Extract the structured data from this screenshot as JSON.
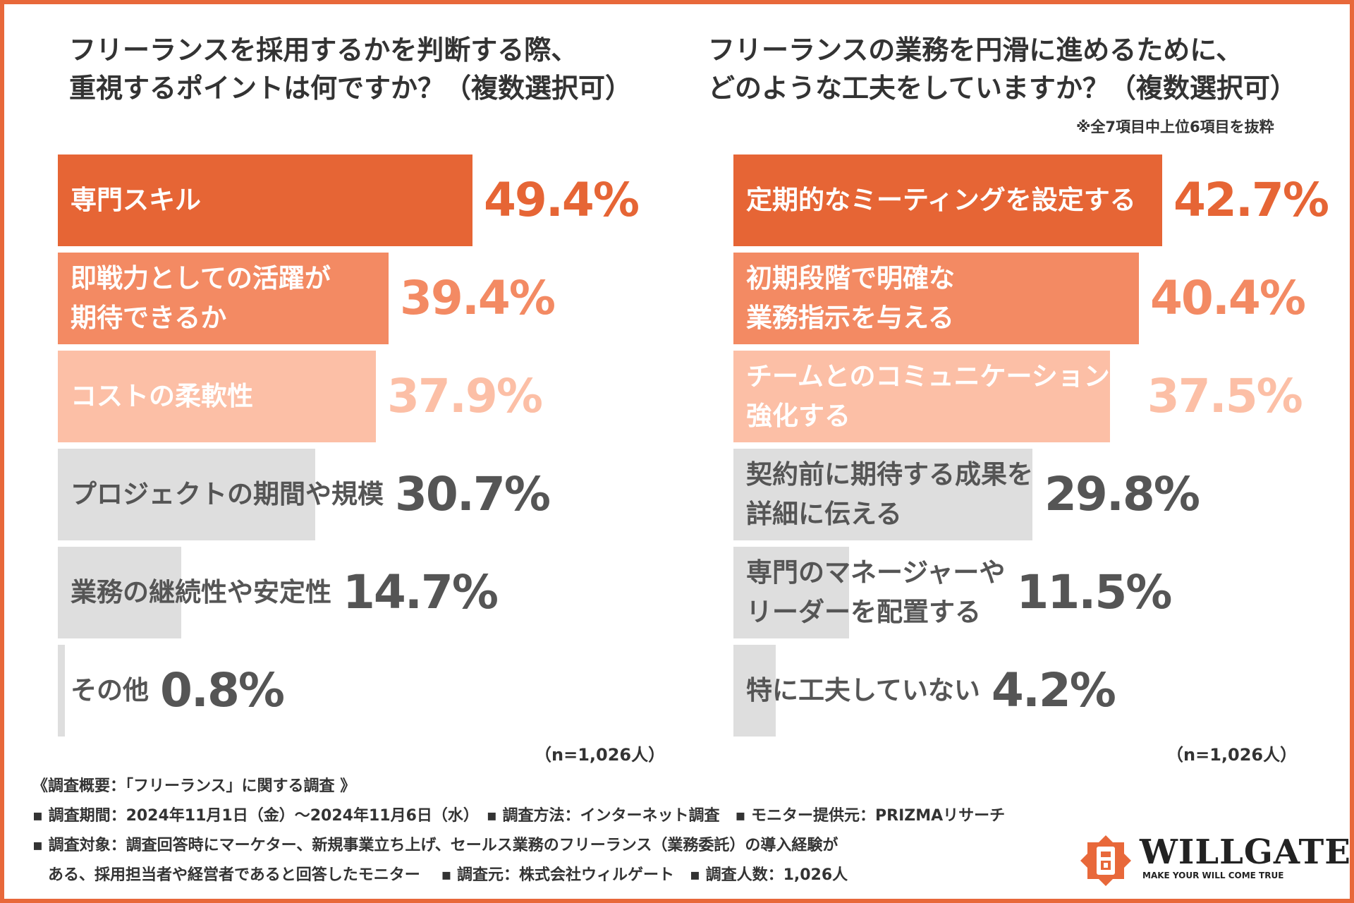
{
  "left": {
    "title_line1": "フリーランスを採用するかを判断する際、",
    "title_line2": "重視するポイントは何ですか？（複数選択可）",
    "n_label": "（n=1,026人）"
  },
  "right": {
    "title_line1": "フリーランスの業務を円滑に進めるために、",
    "title_line2": "どのような工夫をしていますか？（複数選択可）",
    "note": "※全7項目中上位6項目を抜粋",
    "n_label": "（n=1,026人）"
  },
  "chart_data": [
    {
      "type": "bar",
      "orientation": "horizontal",
      "title": "フリーランスを採用するかを判断する際、重視するポイントは何ですか？（複数選択可）",
      "categories": [
        [
          "専門スキル"
        ],
        [
          "即戦力としての活躍が",
          "期待できるか"
        ],
        [
          "コストの柔軟性"
        ],
        [
          "プロジェクトの期間や規模"
        ],
        [
          "業務の継続性や安定性"
        ],
        [
          "その他"
        ]
      ],
      "values": [
        49.4,
        39.4,
        37.9,
        30.7,
        14.7,
        0.8
      ],
      "value_labels": [
        "49.4%",
        "39.4%",
        "37.9%",
        "30.7%",
        "14.7%",
        "0.8%"
      ],
      "unit": "%",
      "xlim": [
        0,
        50
      ],
      "colors": [
        "#e66535",
        "#f38a63",
        "#fcbfa6",
        "#dedede",
        "#dedede",
        "#dedede"
      ],
      "label_colors": [
        "#ffffff",
        "#ffffff",
        "#ffffff",
        "#555555",
        "#555555",
        "#555555"
      ],
      "value_colors": [
        "#e66535",
        "#f38a63",
        "#fcbfa6",
        "#555555",
        "#555555",
        "#555555"
      ]
    },
    {
      "type": "bar",
      "orientation": "horizontal",
      "title": "フリーランスの業務を円滑に進めるために、どのような工夫をしていますか？（複数選択可）",
      "categories": [
        [
          "定期的なミーティングを設定する"
        ],
        [
          "初期段階で明確な",
          "業務指示を与える"
        ],
        [
          "チームとのコミュニケーションを",
          "強化する"
        ],
        [
          "契約前に期待する成果を",
          "詳細に伝える"
        ],
        [
          "専門のマネージャーや",
          "リーダーを配置する"
        ],
        [
          "特に工夫していない"
        ]
      ],
      "values": [
        42.7,
        40.4,
        37.5,
        29.8,
        11.5,
        4.2
      ],
      "value_labels": [
        "42.7%",
        "40.4%",
        "37.5%",
        "29.8%",
        "11.5%",
        "4.2%"
      ],
      "unit": "%",
      "xlim": [
        0,
        43
      ],
      "colors": [
        "#e66535",
        "#f38a63",
        "#fcbfa6",
        "#dedede",
        "#dedede",
        "#dedede"
      ],
      "label_colors": [
        "#ffffff",
        "#ffffff",
        "#ffffff",
        "#555555",
        "#555555",
        "#555555"
      ],
      "value_colors": [
        "#e66535",
        "#f38a63",
        "#fcbfa6",
        "#555555",
        "#555555",
        "#555555"
      ]
    }
  ],
  "footer": {
    "line1": "《調査概要：「フリーランス」に関する調査 》",
    "line2": "▪ 調査期間：2024年11月1日（金）～2024年11月6日（水）　▪ 調査方法：インターネット調査　▪ モニター提供元：PRIZMAリサーチ",
    "line3": "▪ 調査対象：調査回答時にマーケター、新規事業立ち上げ、セールス業務のフリーランス（業務委託）の導入経験が",
    "line4": "　ある、採用担当者や経営者であると回答したモニター　 ▪ 調査元：株式会社ウィルゲート　▪ 調査人数：1,026人"
  },
  "logo": {
    "name": "WILLGATE",
    "tagline": "MAKE YOUR WILL COME TRUE",
    "color": "#e8683a"
  },
  "colors": {
    "frame": "#e8683a"
  }
}
